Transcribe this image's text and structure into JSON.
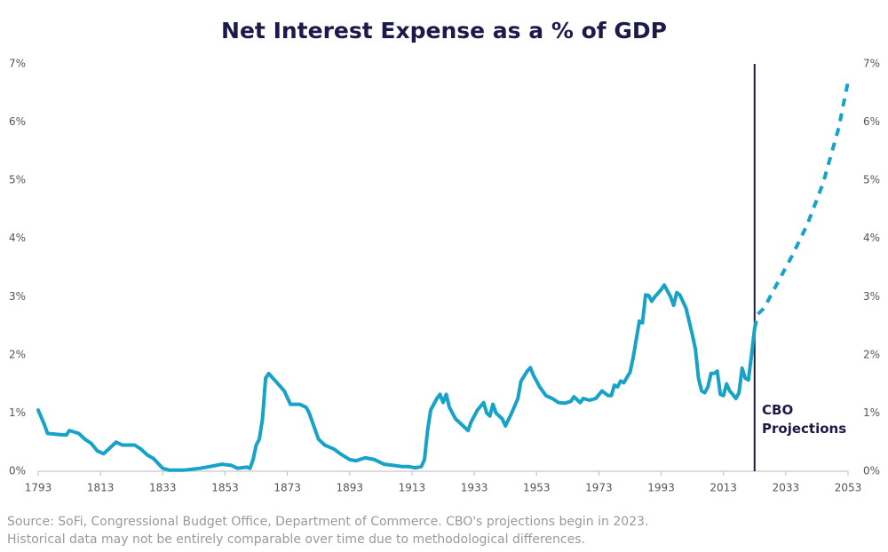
{
  "chart_data": {
    "type": "line",
    "title": "Net Interest Expense as a % of GDP",
    "xlim": [
      1793,
      2053
    ],
    "xticks": [
      1793,
      1813,
      1833,
      1853,
      1873,
      1893,
      1913,
      1933,
      1953,
      1973,
      1993,
      2013,
      2033,
      2053
    ],
    "ylim": [
      0,
      7
    ],
    "yticks": [
      {
        "value": 0,
        "label": "0%"
      },
      {
        "value": 1,
        "label": "1%"
      },
      {
        "value": 2,
        "label": "2%"
      },
      {
        "value": 3,
        "label": "3%"
      },
      {
        "value": 4,
        "label": "4%"
      },
      {
        "value": 5,
        "label": "5%"
      },
      {
        "value": 6,
        "label": "6%"
      },
      {
        "value": 7,
        "label": "7%"
      }
    ],
    "y2lim": [
      0,
      7
    ],
    "y2ticks": [
      {
        "value": 0,
        "label": "0%"
      },
      {
        "value": 1,
        "label": "1%"
      },
      {
        "value": 2,
        "label": "2%"
      },
      {
        "value": 3,
        "label": "3%"
      },
      {
        "value": 4,
        "label": "4%"
      },
      {
        "value": 5,
        "label": "5%"
      },
      {
        "value": 6,
        "label": "6%"
      },
      {
        "value": 7,
        "label": "7%"
      }
    ],
    "grid": false,
    "series": [
      {
        "color": "#17a2c8",
        "dashed": false,
        "x": [
          1793,
          1795,
          1796,
          1800,
          1802,
          1803,
          1806,
          1808,
          1810,
          1812,
          1814,
          1817,
          1818,
          1820,
          1824,
          1826,
          1828,
          1830,
          1833,
          1835,
          1840,
          1845,
          1848,
          1852,
          1855,
          1857,
          1860,
          1861,
          1862,
          1863,
          1864,
          1865,
          1866,
          1867,
          1868,
          1870,
          1872,
          1874,
          1877,
          1879,
          1880,
          1881,
          1883,
          1885,
          1888,
          1890,
          1893,
          1895,
          1898,
          1901,
          1904,
          1907,
          1910,
          1912,
          1914,
          1916,
          1917,
          1918,
          1919,
          1921,
          1922,
          1923,
          1924,
          1925,
          1927,
          1929,
          1931,
          1932,
          1934,
          1936,
          1937,
          1938,
          1939,
          1940,
          1942,
          1943,
          1945,
          1947,
          1948,
          1950,
          1951,
          1952,
          1954,
          1956,
          1958,
          1960,
          1962,
          1964,
          1965,
          1967,
          1968,
          1970,
          1972,
          1974,
          1976,
          1977,
          1978,
          1979,
          1980,
          1981,
          1983,
          1984,
          1986,
          1987,
          1988,
          1989,
          1990,
          1991,
          1993,
          1994,
          1996,
          1997,
          1998,
          1999,
          2001,
          2003,
          2004,
          2005,
          2006,
          2007,
          2008,
          2009,
          2010,
          2011,
          2012,
          2013,
          2014,
          2015,
          2016,
          2017,
          2018,
          2019,
          2020,
          2021,
          2022,
          2023
        ],
        "values": [
          1.05,
          0.8,
          0.65,
          0.63,
          0.62,
          0.7,
          0.65,
          0.55,
          0.48,
          0.35,
          0.3,
          0.45,
          0.5,
          0.45,
          0.45,
          0.38,
          0.28,
          0.22,
          0.05,
          0.02,
          0.02,
          0.05,
          0.08,
          0.12,
          0.1,
          0.05,
          0.07,
          0.05,
          0.2,
          0.45,
          0.55,
          0.9,
          1.6,
          1.68,
          1.62,
          1.5,
          1.38,
          1.15,
          1.15,
          1.1,
          1.0,
          0.85,
          0.55,
          0.45,
          0.38,
          0.3,
          0.2,
          0.18,
          0.23,
          0.2,
          0.12,
          0.1,
          0.08,
          0.08,
          0.06,
          0.08,
          0.2,
          0.7,
          1.05,
          1.25,
          1.32,
          1.18,
          1.32,
          1.1,
          0.9,
          0.8,
          0.7,
          0.85,
          1.05,
          1.18,
          1.0,
          0.95,
          1.15,
          1.0,
          0.9,
          0.78,
          1.0,
          1.25,
          1.55,
          1.72,
          1.78,
          1.65,
          1.45,
          1.3,
          1.25,
          1.18,
          1.17,
          1.2,
          1.28,
          1.18,
          1.25,
          1.22,
          1.25,
          1.38,
          1.3,
          1.3,
          1.48,
          1.45,
          1.55,
          1.52,
          1.7,
          1.95,
          2.58,
          2.55,
          3.03,
          3.02,
          2.92,
          3.0,
          3.12,
          3.2,
          3.0,
          2.85,
          3.07,
          3.03,
          2.8,
          2.35,
          2.1,
          1.6,
          1.38,
          1.35,
          1.45,
          1.68,
          1.68,
          1.72,
          1.32,
          1.3,
          1.5,
          1.38,
          1.32,
          1.25,
          1.35,
          1.77,
          1.6,
          1.57,
          2.0,
          2.45
        ]
      },
      {
        "color": "#17a2c8",
        "dashed": true,
        "x": [
          2023,
          2024,
          2025,
          2026,
          2030,
          2035,
          2040,
          2045,
          2050,
          2053
        ],
        "values": [
          2.45,
          2.7,
          2.75,
          2.8,
          3.2,
          3.7,
          4.25,
          4.95,
          5.9,
          6.7
        ]
      }
    ],
    "annotation": {
      "text": "CBO Projections",
      "x": 2023,
      "color": "#1c1a4a"
    },
    "notes": [
      "Source: SoFi, Congressional Budget Office, Department of Commerce. CBO's projections begin in 2023.",
      "Historical data may not be entirely comparable over time due to methodological differences."
    ]
  }
}
